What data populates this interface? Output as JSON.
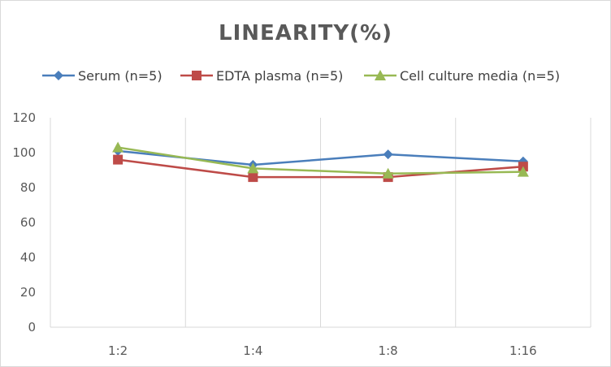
{
  "chart_data": {
    "type": "line",
    "title": "LINEARITY(%)",
    "xlabel": "",
    "ylabel": "",
    "categories": [
      "1:2",
      "1:4",
      "1:8",
      "1:16"
    ],
    "ylim": [
      0,
      120
    ],
    "yticks": [
      0,
      20,
      40,
      60,
      80,
      100,
      120
    ],
    "grid": "vertical",
    "legend_position": "top",
    "series": [
      {
        "name": "Serum (n=5)",
        "values": [
          101,
          93,
          99,
          95
        ],
        "color": "#4A7EBB",
        "marker": "diamond"
      },
      {
        "name": "EDTA plasma (n=5)",
        "values": [
          96,
          86,
          86,
          92
        ],
        "color": "#BE4B48",
        "marker": "square"
      },
      {
        "name": "Cell culture media (n=5)",
        "values": [
          103,
          91,
          88,
          89
        ],
        "color": "#98B954",
        "marker": "triangle"
      }
    ]
  }
}
